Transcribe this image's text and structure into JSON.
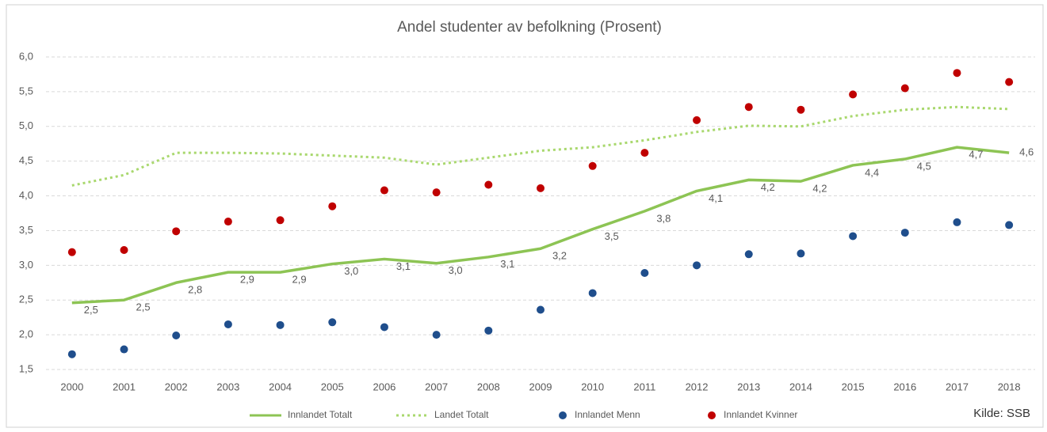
{
  "chart_data": {
    "type": "line",
    "title": "Andel studenter av befolkning (Prosent)",
    "annotation": "Kilde: SSB",
    "categories": [
      "2000",
      "2001",
      "2002",
      "2003",
      "2004",
      "2005",
      "2006",
      "2007",
      "2008",
      "2009",
      "2010",
      "2011",
      "2012",
      "2013",
      "2014",
      "2015",
      "2016",
      "2017",
      "2018"
    ],
    "series": [
      {
        "name": "Innlandet Totalt",
        "color": "#8dc454",
        "kind": "line",
        "values": [
          2.46,
          2.5,
          2.75,
          2.9,
          2.9,
          3.02,
          3.09,
          3.03,
          3.12,
          3.24,
          3.52,
          3.78,
          4.07,
          4.23,
          4.21,
          4.44,
          4.53,
          4.7,
          4.62
        ],
        "value_labels": [
          "2,5",
          "2,5",
          "2,8",
          "2,9",
          "2,9",
          "3,0",
          "3,1",
          "3,0",
          "3,1",
          "3,2",
          "3,5",
          "3,8",
          "4,1",
          "4,2",
          "4,2",
          "4,4",
          "4,5",
          "4,7",
          "4,6"
        ]
      },
      {
        "name": "Landet Totalt",
        "color": "#a9d86e",
        "kind": "dotted",
        "values": [
          4.15,
          4.3,
          4.62,
          4.62,
          4.61,
          4.58,
          4.55,
          4.45,
          4.55,
          4.65,
          4.7,
          4.8,
          4.92,
          5.01,
          5.0,
          5.15,
          5.24,
          5.28,
          5.25
        ]
      },
      {
        "name": "Innlandet Menn",
        "color": "#1f4e8c",
        "kind": "scatter",
        "values": [
          1.72,
          1.79,
          1.99,
          2.15,
          2.14,
          2.18,
          2.11,
          2.0,
          2.06,
          2.36,
          2.6,
          2.89,
          3.0,
          3.16,
          3.17,
          3.42,
          3.47,
          3.62,
          3.58
        ]
      },
      {
        "name": "Innlandet Kvinner",
        "color": "#c00000",
        "kind": "scatter",
        "values": [
          3.19,
          3.22,
          3.49,
          3.63,
          3.65,
          3.85,
          4.08,
          4.05,
          4.16,
          4.11,
          4.43,
          4.62,
          5.09,
          5.28,
          5.24,
          5.46,
          5.55,
          5.77,
          5.64
        ]
      }
    ],
    "ylim": [
      1.5,
      6.0
    ],
    "yticks": [
      {
        "value": 1.5,
        "label": "1,5"
      },
      {
        "value": 2.0,
        "label": "2,0"
      },
      {
        "value": 2.5,
        "label": "2,5"
      },
      {
        "value": 3.0,
        "label": "3,0"
      },
      {
        "value": 3.5,
        "label": "3,5"
      },
      {
        "value": 4.0,
        "label": "4,0"
      },
      {
        "value": 4.5,
        "label": "4,5"
      },
      {
        "value": 5.0,
        "label": "5,0"
      },
      {
        "value": 5.5,
        "label": "5,5"
      },
      {
        "value": 6.0,
        "label": "6,0"
      }
    ],
    "grid": true
  }
}
